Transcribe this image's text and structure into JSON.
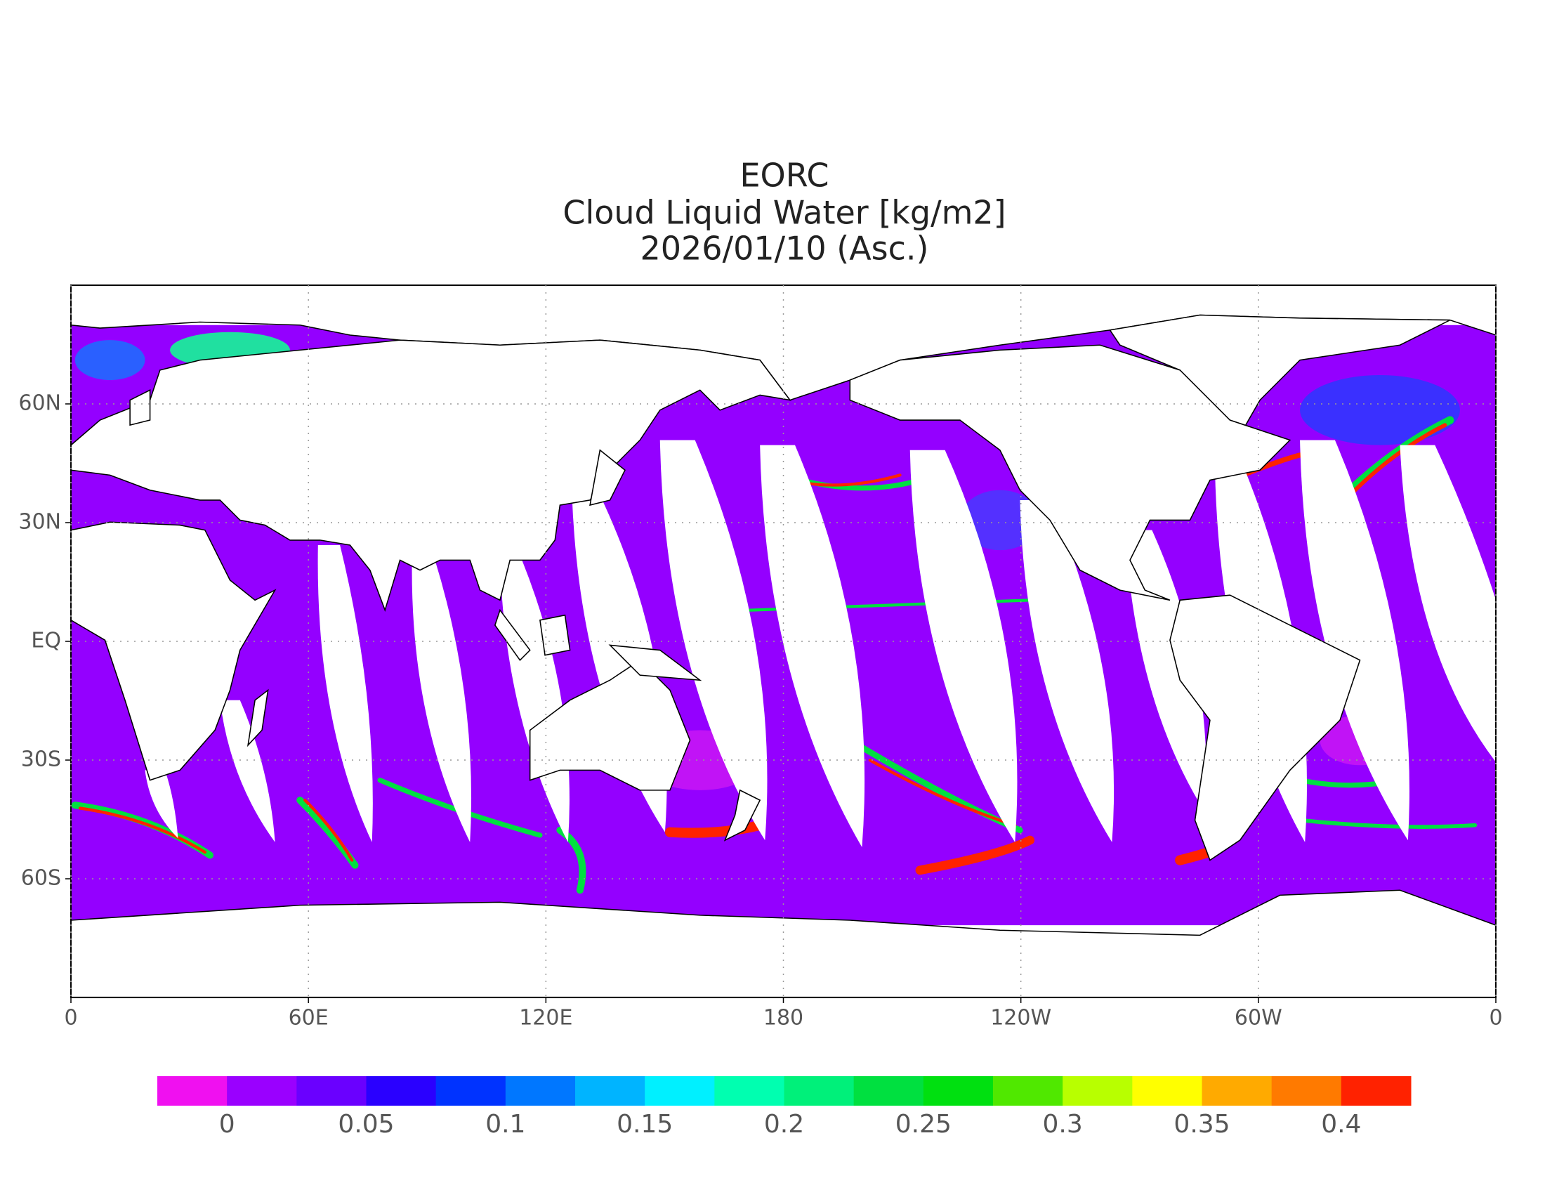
{
  "title_lines": [
    "EORC",
    "Cloud Liquid Water [kg/m2]",
    "2026/01/10 (Asc.)"
  ],
  "map": {
    "lon_range": [
      0,
      360
    ],
    "lat_range": [
      -90,
      90
    ],
    "lon_ticks": [
      {
        "value": 0,
        "label": "0"
      },
      {
        "value": 60,
        "label": "60E"
      },
      {
        "value": 120,
        "label": "120E"
      },
      180,
      {
        "value": 240,
        "label": "120W"
      },
      {
        "value": 300,
        "label": "60W"
      },
      {
        "value": 360,
        "label": "0"
      }
    ],
    "lat_ticks": [
      {
        "value": 60,
        "label": "60N"
      },
      {
        "value": 30,
        "label": "30N"
      },
      {
        "value": 0,
        "label": "EQ"
      },
      {
        "value": -30,
        "label": "30S"
      },
      {
        "value": -60,
        "label": "60S"
      }
    ],
    "grid": true
  },
  "colorbar": {
    "range": [
      -0.025,
      0.425
    ],
    "colors": [
      "#f010f0",
      "#9a00ff",
      "#6a00ff",
      "#2a00ff",
      "#0033ff",
      "#0077ff",
      "#00b4ff",
      "#00f0ff",
      "#00ffb0",
      "#00f07a",
      "#00e040",
      "#00e010",
      "#50e800",
      "#b8ff00",
      "#ffff00",
      "#ffaa00",
      "#ff7a00",
      "#ff2200"
    ],
    "ticks": [
      0,
      0.05,
      0.1,
      0.15,
      0.2,
      0.25,
      0.3,
      0.35,
      0.4
    ]
  }
}
